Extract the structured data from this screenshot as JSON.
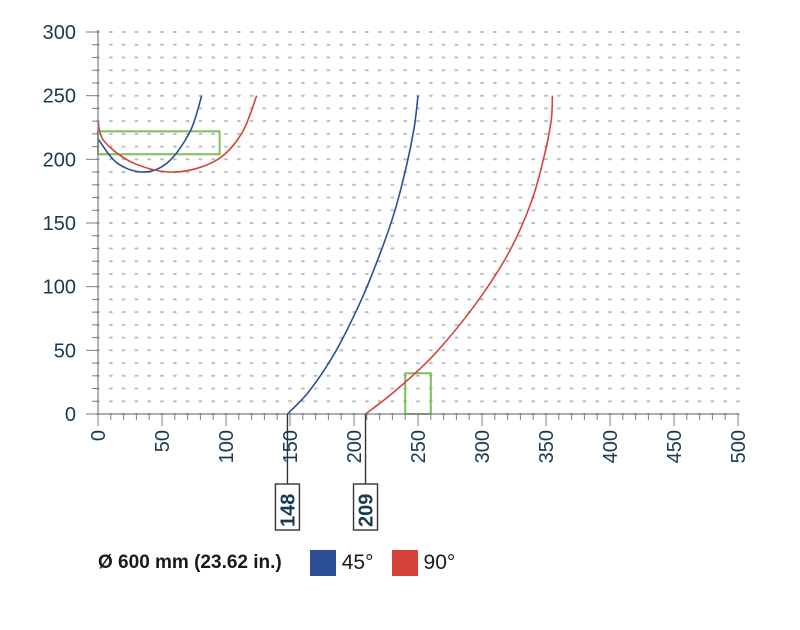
{
  "chart_data": {
    "type": "line",
    "xlim": [
      0,
      500
    ],
    "ylim": [
      0,
      300
    ],
    "x_ticks": [
      "0",
      "50",
      "100",
      "150",
      "200",
      "250",
      "300",
      "350",
      "400",
      "450",
      "500"
    ],
    "y_ticks": [
      "0",
      "50",
      "100",
      "150",
      "200",
      "250",
      "300"
    ],
    "grid": "dotted",
    "series": [
      {
        "name": "45°",
        "color": "#2c4e94",
        "segments": [
          [
            [
              81,
              250
            ],
            [
              72,
              222
            ],
            [
              55,
              198
            ],
            [
              36,
              190
            ],
            [
              15,
              197
            ],
            [
              0,
              216
            ]
          ],
          [
            [
              148,
              0
            ],
            [
              165,
              18
            ],
            [
              185,
              48
            ],
            [
              205,
              88
            ],
            [
              220,
              125
            ],
            [
              232,
              160
            ],
            [
              241,
              195
            ],
            [
              247,
              225
            ],
            [
              250,
              250
            ]
          ]
        ]
      },
      {
        "name": "90°",
        "color": "#d5433a",
        "segments": [
          [
            [
              124,
              250
            ],
            [
              112,
              220
            ],
            [
              92,
              199
            ],
            [
              60,
              190
            ],
            [
              28,
              197
            ],
            [
              5,
              214
            ],
            [
              0,
              230
            ]
          ],
          [
            [
              209,
              0
            ],
            [
              232,
              18
            ],
            [
              262,
              46
            ],
            [
              294,
              85
            ],
            [
              320,
              125
            ],
            [
              338,
              165
            ],
            [
              348,
              200
            ],
            [
              354,
              230
            ],
            [
              355,
              250
            ]
          ]
        ]
      }
    ],
    "callouts": [
      {
        "label": "148",
        "x": 148
      },
      {
        "label": "209",
        "x": 209
      }
    ],
    "highlight_boxes": [
      {
        "x0": 0,
        "x1": 95,
        "y0": 204,
        "y1": 222,
        "color": "#7ac05a"
      },
      {
        "x0": 240,
        "x1": 260,
        "y0": 0,
        "y1": 32,
        "color": "#7ac05a"
      }
    ]
  },
  "legend": {
    "title": "Ø 600 mm (23.62 in.)",
    "items": [
      {
        "label": "45°",
        "color": "#2c4e94"
      },
      {
        "label": "90°",
        "color": "#d5433a"
      }
    ]
  }
}
